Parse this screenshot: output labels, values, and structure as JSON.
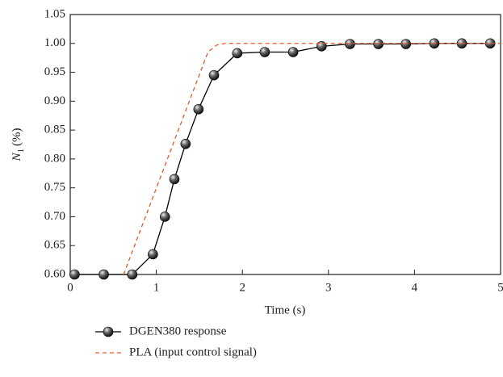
{
  "chart_data": {
    "type": "line",
    "x_label": "Time (s)",
    "y_label": {
      "symbol": "N",
      "subscript": "1",
      "unit": "(%)"
    },
    "xlim": [
      0,
      5
    ],
    "xticks": [
      0,
      1,
      2,
      3,
      4,
      5
    ],
    "ylim": [
      0.6,
      1.05
    ],
    "yticks": [
      {
        "value": 0.6,
        "label": "0.60"
      },
      {
        "value": 0.65,
        "label": "0.65"
      },
      {
        "value": 0.7,
        "label": "0.70"
      },
      {
        "value": 0.75,
        "label": "0.75"
      },
      {
        "value": 0.8,
        "label": "0.80"
      },
      {
        "value": 0.85,
        "label": "0.85"
      },
      {
        "value": 0.9,
        "label": "0.90"
      },
      {
        "value": 0.95,
        "label": "0.95"
      },
      {
        "value": 1.0,
        "label": "1.00"
      },
      {
        "value": 1.05,
        "label": "1.05"
      }
    ],
    "series": [
      {
        "name": "DGEN380 response",
        "color": "#000000",
        "markers": true,
        "dashed": false,
        "x": [
          0.05,
          0.39,
          0.72,
          0.96,
          1.1,
          1.21,
          1.34,
          1.49,
          1.67,
          1.94,
          2.26,
          2.59,
          2.92,
          3.25,
          3.58,
          3.9,
          4.23,
          4.55,
          4.88
        ],
        "values": [
          0.6,
          0.6,
          0.6,
          0.635,
          0.7,
          0.765,
          0.826,
          0.886,
          0.945,
          0.983,
          0.985,
          0.985,
          0.995,
          0.999,
          0.999,
          0.999,
          1.0,
          1.0,
          1.0
        ]
      },
      {
        "name": "PLA (input control signal)",
        "color": "#e8572a",
        "markers": false,
        "dashed": true,
        "x": [
          0.62,
          1.6,
          1.7,
          1.8,
          5
        ],
        "values": [
          0.6,
          0.985,
          0.997,
          1.0,
          1.0
        ]
      }
    ]
  }
}
